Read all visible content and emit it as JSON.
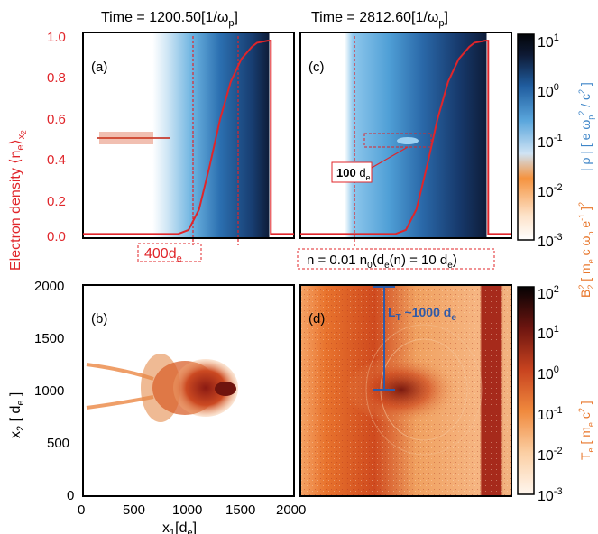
{
  "chart_data": [
    {
      "panel": "(a)",
      "type": "line",
      "title": "Time = 1200.50[1/ω_p]",
      "ylabel": "Electron density ⟨n_e⟩_x2",
      "ylim": [
        0.0,
        1.0
      ],
      "xlim": [
        0,
        2000
      ],
      "yticks": [
        "0.0",
        "0.2",
        "0.4",
        "0.6",
        "0.8",
        "1.0"
      ],
      "series": [
        {
          "x": [
            0,
            900,
            1000,
            1100,
            1200,
            1300,
            1400,
            1500,
            1600,
            1650,
            1700,
            1750,
            1780,
            1780,
            2000
          ],
          "values": [
            0.02,
            0.02,
            0.04,
            0.14,
            0.35,
            0.58,
            0.76,
            0.87,
            0.93,
            0.95,
            0.955,
            0.96,
            0.96,
            0.02,
            0.02
          ]
        }
      ],
      "annotation": "400d_e",
      "color": "#e0252a"
    },
    {
      "panel": "(c)",
      "type": "line",
      "title": "Time = 2812.60[1/ω_p]",
      "xlim": [
        0,
        2000
      ],
      "ylim": [
        0.0,
        1.0
      ],
      "series": [
        {
          "x": [
            0,
            900,
            1000,
            1100,
            1200,
            1300,
            1400,
            1500,
            1600,
            1650,
            1700,
            1750,
            1780,
            1780,
            2000
          ],
          "values": [
            0.02,
            0.02,
            0.04,
            0.14,
            0.35,
            0.58,
            0.76,
            0.87,
            0.93,
            0.95,
            0.955,
            0.96,
            0.96,
            0.02,
            0.02
          ]
        }
      ],
      "annotations": [
        "100 d_e",
        "n = 0.01 n_0(d_e(n) = 10 d_e)"
      ],
      "colorbar": {
        "ticks": [
          "10^1",
          "10^0",
          "10^-1",
          "10^-2",
          "10^-3"
        ],
        "label_blue": "| ρ | [ e ω_p² / c² ]",
        "label_orange": "B_2² [ m_e c ω_p e^-1 ]²"
      }
    },
    {
      "panel": "(b)",
      "type": "heatmap",
      "xlabel": "x_1[d_e]",
      "ylabel": "x_2 [ d_e ]",
      "xlim": [
        0,
        2000
      ],
      "ylim": [
        0,
        2000
      ],
      "xticks": [
        "0",
        "500",
        "1000",
        "1500",
        "2000"
      ],
      "yticks": [
        "0",
        "500",
        "1000",
        "1500",
        "2000"
      ]
    },
    {
      "panel": "(d)",
      "type": "heatmap",
      "annotation": "L_T ~1000 d_e",
      "colorbar": {
        "ticks": [
          "10^2",
          "10^1",
          "10^0",
          "10^-1",
          "10^-2",
          "10^-3"
        ],
        "label": "T_e [ m_e c² ]"
      }
    }
  ],
  "text": {
    "title_a": "Time = 1200.50[1/ω",
    "title_a_sub": "p",
    "title_a_end": "]",
    "title_c": "Time = 2812.60[1/ω",
    "title_c_sub": "p",
    "title_c_end": "]",
    "panel_a": "(a)",
    "panel_b": "(b)",
    "panel_c": "(c)",
    "panel_d": "(d)",
    "ylabel_density": "Electron density ⟨n",
    "ylabel_density_sub1": "e",
    "ylabel_density_mid": "⟩",
    "ylabel_density_sub2": "x",
    "ylabel_density_sub3": "2",
    "box_400": "400d",
    "box_400_sub": "e",
    "box_100": "100",
    "box_100_unit": " d",
    "box_100_sub": "e",
    "box_n": "n = 0.01 n",
    "box_n_sub0": "0",
    "box_n_mid": "(d",
    "box_n_sub1": "e",
    "box_n_end": "(n) = 10 d",
    "box_n_sub2": "e",
    "box_n_close": ")",
    "lt": "L",
    "lt_sub": "T",
    "lt_rest": " ~1000 d",
    "lt_sub2": "e",
    "ylabel_x2": "x",
    "ylabel_x2_sub": "2",
    "ylabel_x2_rest": " [ d",
    "ylabel_x2_sub2": "e",
    "ylabel_x2_end": " ]",
    "xlabel_x1": "x",
    "xlabel_x1_sub": "1",
    "xlabel_x1_rest": "[d",
    "xlabel_x1_sub2": "e",
    "xlabel_x1_end": "]",
    "cb_rho": "| ρ | [ e ω",
    "cb_rho_sub": "p",
    "cb_rho_sup": "2",
    "cb_rho_rest": " / c",
    "cb_rho_sup2": "2",
    "cb_rho_end": " ]",
    "cb_b": "B",
    "cb_b_sub": "2",
    "cb_b_sup": "2",
    "cb_b_rest": " [ m",
    "cb_b_sub2": "e",
    "cb_b_rest2": " c ω",
    "cb_b_sub3": "p",
    "cb_b_rest3": " e",
    "cb_b_sup3": "-1",
    "cb_b_end": " ]",
    "cb_b_sup4": "2",
    "cb_te": "T",
    "cb_te_sub": "e",
    "cb_te_rest": " [ m",
    "cb_te_sub2": "e",
    "cb_te_rest2": " c",
    "cb_te_sup": "2",
    "cb_te_end": " ]"
  },
  "colors": {
    "density_line": "#e0252a",
    "annotation_red": "#e0252a",
    "annotation_blue": "#2f5aa8",
    "rho_colormap": [
      "#ffffff",
      "#cfe6f5",
      "#5aa9dd",
      "#1f5c9e",
      "#0f1f3d",
      "#05070d"
    ],
    "temp_colormap": [
      "#fff4ea",
      "#f8b27a",
      "#e4622a",
      "#a3271a",
      "#5a0f0c",
      "#0a0404"
    ],
    "label_orange": "#e8762a",
    "label_blue": "#3f86c8"
  }
}
